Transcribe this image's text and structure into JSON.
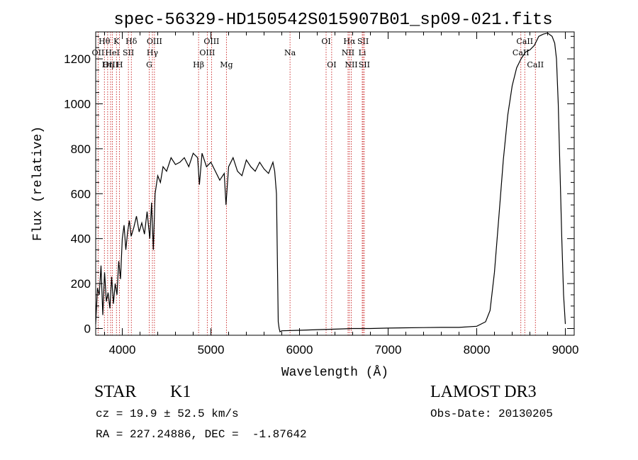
{
  "chart_data": {
    "type": "line",
    "title": "spec-56329-HD150542S015907B01_sp09-021.fits",
    "xlabel": "Wavelength (Å)",
    "ylabel": "Flux (relative)",
    "xlim": [
      3700,
      9100
    ],
    "ylim": [
      -30,
      1320
    ],
    "xticks": [
      4000,
      5000,
      6000,
      7000,
      8000,
      9000
    ],
    "xtick_labels": [
      "4000",
      "5000",
      "6000",
      "7000",
      "8000",
      "9000"
    ],
    "yticks": [
      0,
      200,
      400,
      600,
      800,
      1000,
      1200
    ],
    "ytick_labels": [
      "0",
      "200",
      "400",
      "600",
      "800",
      "1000",
      "1200"
    ],
    "series": [
      {
        "name": "spectrum",
        "x": [
          3700,
          3720,
          3740,
          3760,
          3780,
          3800,
          3820,
          3840,
          3860,
          3880,
          3900,
          3920,
          3940,
          3960,
          3980,
          4000,
          4020,
          4040,
          4060,
          4080,
          4100,
          4130,
          4160,
          4190,
          4220,
          4250,
          4280,
          4310,
          4330,
          4350,
          4370,
          4400,
          4430,
          4460,
          4500,
          4550,
          4600,
          4650,
          4700,
          4750,
          4800,
          4850,
          4870,
          4900,
          4950,
          5000,
          5050,
          5100,
          5150,
          5170,
          5200,
          5250,
          5300,
          5350,
          5400,
          5450,
          5500,
          5550,
          5600,
          5650,
          5700,
          5720,
          5740,
          5760,
          5770,
          5780,
          5800,
          6000,
          6200,
          6400,
          6600,
          6800,
          7000,
          7200,
          7400,
          7600,
          7800,
          8000,
          8100,
          8150,
          8200,
          8250,
          8300,
          8350,
          8400,
          8450,
          8500,
          8550,
          8600,
          8650,
          8700,
          8750,
          8800,
          8850,
          8880,
          8900,
          8920,
          8940,
          8960,
          8980,
          9000
        ],
        "y": [
          20,
          180,
          150,
          280,
          60,
          250,
          120,
          160,
          90,
          230,
          110,
          200,
          150,
          300,
          220,
          400,
          460,
          350,
          430,
          480,
          410,
          450,
          500,
          430,
          470,
          420,
          520,
          400,
          560,
          350,
          600,
          680,
          650,
          720,
          700,
          760,
          730,
          740,
          760,
          720,
          780,
          760,
          640,
          780,
          720,
          740,
          700,
          660,
          690,
          550,
          720,
          760,
          700,
          680,
          750,
          720,
          700,
          740,
          710,
          690,
          740,
          700,
          600,
          30,
          0,
          -15,
          -10,
          -8,
          -5,
          -3,
          0,
          0,
          2,
          3,
          4,
          5,
          5,
          10,
          30,
          80,
          250,
          500,
          750,
          950,
          1080,
          1160,
          1200,
          1230,
          1240,
          1260,
          1300,
          1310,
          1315,
          1300,
          1270,
          1200,
          1000,
          700,
          400,
          150,
          20
        ]
      }
    ],
    "lines": [
      {
        "label": "Hθ",
        "x": 3798,
        "row": 1
      },
      {
        "label": "OII",
        "x": 3727,
        "row": 2
      },
      {
        "label": "OIII",
        "x": 3868,
        "row": 3
      },
      {
        "label": "Hη",
        "x": 3835,
        "row": 3
      },
      {
        "label": "K",
        "x": 3934,
        "row": 1
      },
      {
        "label": "HeI",
        "x": 3889,
        "row": 2
      },
      {
        "label": "H",
        "x": 3969,
        "row": 3
      },
      {
        "label": "Hδ",
        "x": 4102,
        "row": 1
      },
      {
        "label": "SII",
        "x": 4069,
        "row": 2
      },
      {
        "label": "OIII",
        "x": 4363,
        "row": 1
      },
      {
        "label": "Hγ",
        "x": 4340,
        "row": 2
      },
      {
        "label": "G",
        "x": 4304,
        "row": 3
      },
      {
        "label": "OIII",
        "x": 5007,
        "row": 1
      },
      {
        "label": "OIII",
        "x": 4959,
        "row": 2
      },
      {
        "label": "Hβ",
        "x": 4861,
        "row": 3
      },
      {
        "label": "Mg",
        "x": 5175,
        "row": 3
      },
      {
        "label": "Na",
        "x": 5893,
        "row": 2
      },
      {
        "label": "OI",
        "x": 6300,
        "row": 1
      },
      {
        "label": "OI",
        "x": 6363,
        "row": 3
      },
      {
        "label": "Hα",
        "x": 6563,
        "row": 1
      },
      {
        "label": "NII",
        "x": 6548,
        "row": 2
      },
      {
        "label": "NII",
        "x": 6584,
        "row": 3
      },
      {
        "label": "SII",
        "x": 6717,
        "row": 1
      },
      {
        "label": "Li",
        "x": 6708,
        "row": 2
      },
      {
        "label": "SII",
        "x": 6731,
        "row": 3
      },
      {
        "label": "CaII",
        "x": 8542,
        "row": 1
      },
      {
        "label": "CaII",
        "x": 8498,
        "row": 2
      },
      {
        "label": "CaII",
        "x": 8662,
        "row": 3
      }
    ]
  },
  "info": {
    "class": "STAR",
    "subclass": "K1",
    "survey": "LAMOST DR3",
    "cz": "cz = 19.9 ± 52.5 km/s",
    "obs_date": "Obs-Date: 20130205",
    "coords": "RA = 227.24886, DEC =  -1.87642"
  }
}
